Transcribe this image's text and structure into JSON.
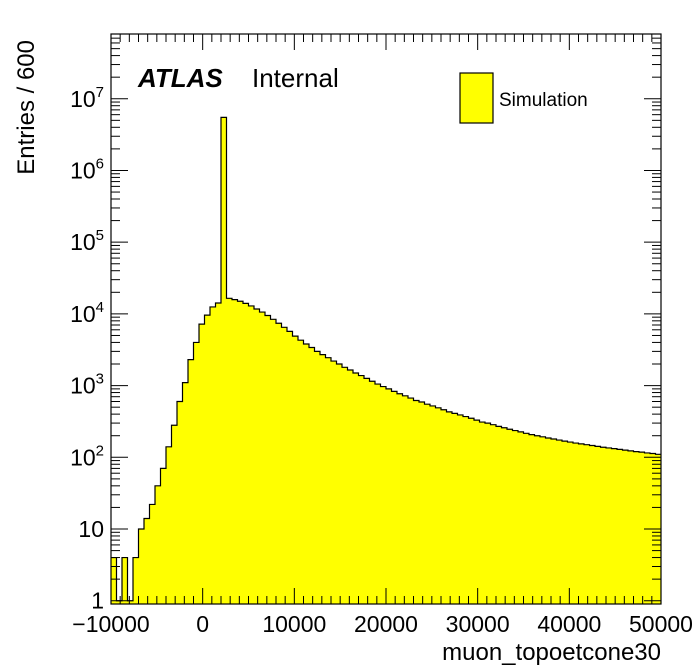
{
  "chart_data": {
    "type": "bar",
    "xlabel": "muon_topoetcone30",
    "ylabel": "Entries / 600",
    "xlim": [
      -10000,
      50000
    ],
    "ylim": [
      0.9,
      80000000
    ],
    "log_y": true,
    "bin_width": 600,
    "x_start": -10000,
    "x_ticks": [
      {
        "value": -10000,
        "label": "−10000"
      },
      {
        "value": 0,
        "label": "0"
      },
      {
        "value": 10000,
        "label": "10000"
      },
      {
        "value": 20000,
        "label": "20000"
      },
      {
        "value": 30000,
        "label": "30000"
      },
      {
        "value": 40000,
        "label": "40000"
      },
      {
        "value": 50000,
        "label": "50000"
      }
    ],
    "y_ticks": [
      {
        "value": 1,
        "base": "1",
        "exp": ""
      },
      {
        "value": 10,
        "base": "10",
        "exp": ""
      },
      {
        "value": 100,
        "base": "10",
        "exp": "2"
      },
      {
        "value": 1000,
        "base": "10",
        "exp": "3"
      },
      {
        "value": 10000,
        "base": "10",
        "exp": "4"
      },
      {
        "value": 100000,
        "base": "10",
        "exp": "5"
      },
      {
        "value": 1000000,
        "base": "10",
        "exp": "6"
      },
      {
        "value": 10000000,
        "base": "10",
        "exp": "7"
      }
    ],
    "values": [
      4,
      1,
      4,
      1,
      4,
      10,
      14,
      22,
      40,
      70,
      140,
      280,
      600,
      1100,
      2300,
      4000,
      7200,
      9600,
      12500,
      14200,
      5500000,
      16500,
      15800,
      15000,
      14000,
      12900,
      11700,
      10600,
      9500,
      8400,
      7400,
      6500,
      5700,
      4900,
      4300,
      3800,
      3400,
      3000,
      2700,
      2450,
      2200,
      2000,
      1800,
      1650,
      1500,
      1380,
      1260,
      1150,
      1050,
      970,
      900,
      830,
      770,
      720,
      670,
      620,
      590,
      550,
      520,
      490,
      460,
      430,
      410,
      390,
      370,
      350,
      330,
      310,
      300,
      285,
      270,
      258,
      246,
      236,
      226,
      216,
      207,
      200,
      193,
      186,
      180,
      174,
      168,
      163,
      158,
      154,
      150,
      146,
      142,
      138,
      135,
      132,
      129,
      126,
      123,
      120,
      118,
      115,
      113,
      110
    ],
    "series": [
      {
        "name": "Simulation",
        "color": "#ffff00"
      }
    ],
    "legend_position": "top-right",
    "grid": false,
    "label_main": "ATLAS",
    "label_sub": "Internal"
  }
}
